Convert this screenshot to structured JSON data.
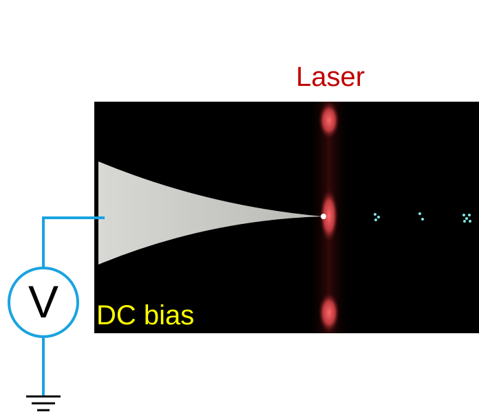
{
  "labels": {
    "laser": "Laser",
    "voltage_symbol": "V",
    "bias": "DC bias"
  }
}
